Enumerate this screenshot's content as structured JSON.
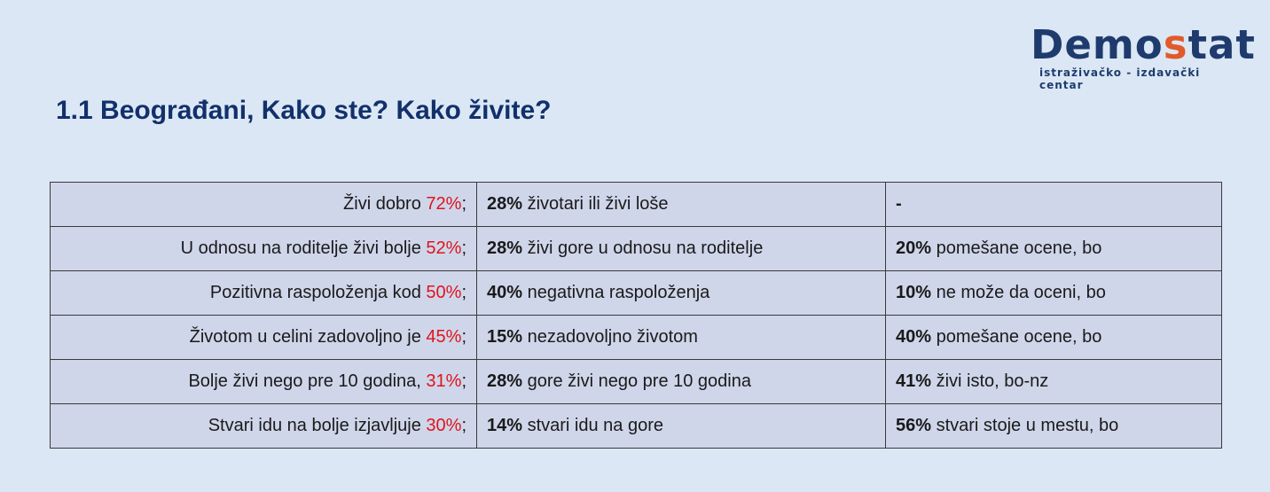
{
  "logo": {
    "word_main": "Demo",
    "word_accent": "s",
    "word_end": "tat",
    "subtitle": "istraživačko - izdavački centar"
  },
  "title": "1.1  Beograđani, Kako ste? Kako živite?",
  "rows": [
    {
      "c1_text": "Živi dobro ",
      "c1_pct": "72%",
      "c1_end": ";",
      "c2_pct": "28%",
      "c2_text": " životari ili živi loše",
      "c3_pct": "-",
      "c3_text": ""
    },
    {
      "c1_text": "U odnosu na roditelje živi bolje ",
      "c1_pct": "52%",
      "c1_end": ";",
      "c2_pct": "28%",
      "c2_text": " živi gore u odnosu na roditelje",
      "c3_pct": "20%",
      "c3_text": " pomešane ocene, bo"
    },
    {
      "c1_text": "Pozitivna raspoloženja kod ",
      "c1_pct": "50%",
      "c1_end": ";",
      "c2_pct": "40%",
      "c2_text": " negativna raspoloženja",
      "c3_pct": "10%",
      "c3_text": " ne može da oceni, bo"
    },
    {
      "c1_text": "Životom u celini zadovoljno je ",
      "c1_pct": "45%",
      "c1_end": ";",
      "c2_pct": "15%",
      "c2_text": " nezadovoljno životom",
      "c3_pct": "40%",
      "c3_text": " pomešane ocene, bo"
    },
    {
      "c1_text": "Bolje živi nego pre 10 godina, ",
      "c1_pct": "31%",
      "c1_end": ";",
      "c2_pct": "28%",
      "c2_text": " gore živi nego pre 10 godina",
      "c3_pct": "41%",
      "c3_text": " živi isto, bo-nz"
    },
    {
      "c1_text": "Stvari idu na bolje izjavljuje ",
      "c1_pct": "30%",
      "c1_end": ";",
      "c2_pct": "14%",
      "c2_text": " stvari idu na gore",
      "c3_pct": "56%",
      "c3_text": " stvari stoje u mestu, bo"
    }
  ],
  "colors": {
    "background": "#dbe7f5",
    "table_fill": "#cfd6ea",
    "title": "#12306a",
    "highlight": "#e0141c",
    "logo_accent": "#e25a2a"
  }
}
